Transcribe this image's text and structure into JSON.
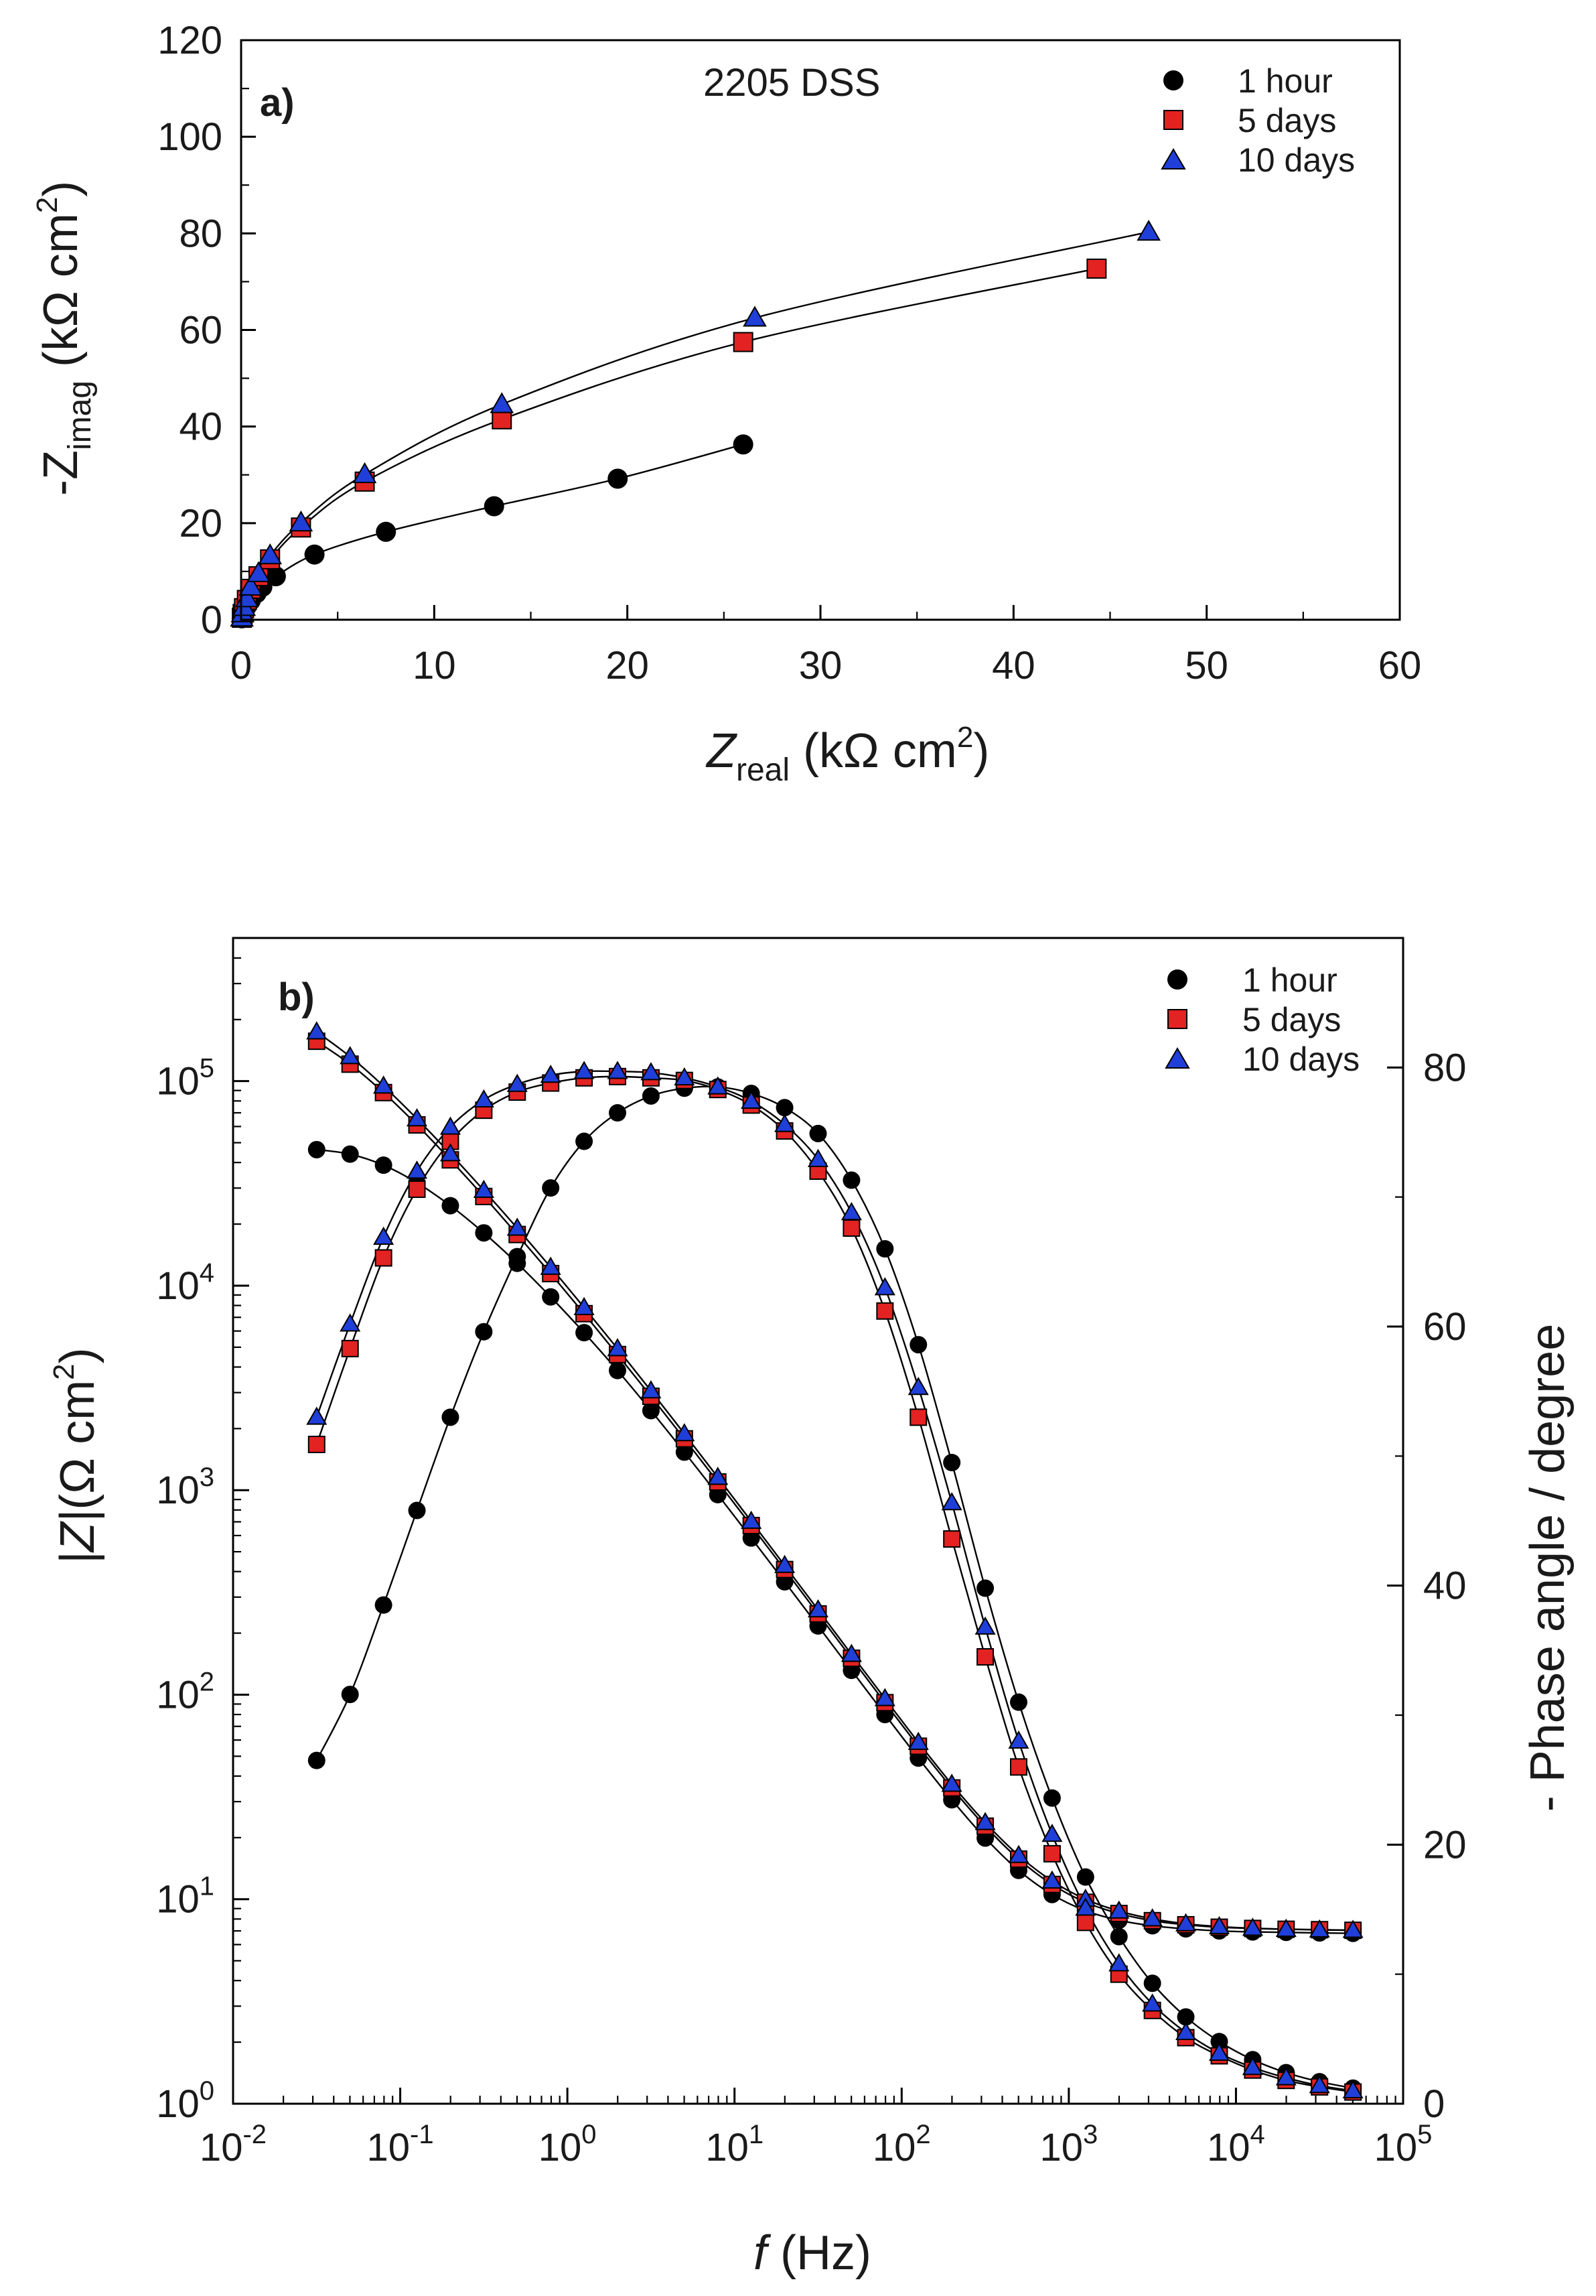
{
  "chart_data": [
    {
      "type": "scatter",
      "panel_label": "a)",
      "title": "2205 DSS",
      "xlabel": {
        "main": "Z",
        "sub": "real",
        "unit": " (kΩ cm",
        "sup": "2",
        "close": ")"
      },
      "ylabel": {
        "main": "-Z",
        "sub": "imag",
        "unit": " (kΩ cm",
        "sup": "2",
        "close": ")"
      },
      "xlim": [
        0,
        60
      ],
      "ylim": [
        0,
        120
      ],
      "xticks": [
        "0",
        "10",
        "20",
        "30",
        "40",
        "50",
        "60"
      ],
      "yticks": [
        "0",
        "20",
        "40",
        "60",
        "80",
        "100",
        "120"
      ],
      "legend_position": "top-right",
      "series": [
        {
          "name": "1 hour",
          "marker": "circle",
          "color": "#000000",
          "x": [
            0.04,
            0.08,
            0.15,
            0.3,
            0.5,
            0.8,
            1.1,
            1.8,
            3.8,
            7.5,
            13.1,
            19.5,
            26.0
          ],
          "y": [
            0.3,
            0.8,
            1.6,
            2.8,
            4.0,
            5.5,
            6.8,
            9.0,
            13.5,
            18.2,
            23.5,
            29.2,
            36.3
          ]
        },
        {
          "name": "5 days",
          "marker": "square",
          "color": "#e32222",
          "x": [
            0.04,
            0.08,
            0.15,
            0.3,
            0.5,
            0.9,
            1.5,
            3.1,
            6.4,
            13.5,
            26.0,
            44.3
          ],
          "y": [
            0.4,
            1.2,
            2.4,
            4.1,
            6.4,
            9.0,
            12.5,
            19.1,
            28.6,
            41.5,
            57.5,
            72.7
          ]
        },
        {
          "name": "10 days",
          "marker": "triangle",
          "color": "#1f3fd8",
          "x": [
            0.04,
            0.08,
            0.15,
            0.3,
            0.5,
            0.9,
            1.5,
            3.1,
            6.4,
            13.5,
            26.6,
            47.0
          ],
          "y": [
            0.4,
            1.3,
            2.6,
            4.4,
            6.8,
            9.6,
            13.3,
            20.1,
            30.1,
            44.6,
            62.5,
            80.3
          ]
        }
      ]
    },
    {
      "type": "scatter",
      "panel_label": "b)",
      "xlabel": {
        "main": "f",
        "unit": " (Hz)"
      },
      "ylabel_left": {
        "main": "|Z|",
        "unit": "(Ω cm",
        "sup": "2",
        "close": ")"
      },
      "ylabel_right": "- Phase angle / degree",
      "x_scale": "log",
      "x_log_range": [
        -2,
        5
      ],
      "y_left_scale": "log",
      "y_left_log_range": [
        0,
        5.7
      ],
      "y_right_range": [
        0,
        90
      ],
      "xtick_exponents": [
        "-2",
        "-1",
        "0",
        "1",
        "2",
        "3",
        "4",
        "5"
      ],
      "ytick_left_exponents": [
        "0",
        "1",
        "2",
        "3",
        "4",
        "5"
      ],
      "yticks_right": [
        "0",
        "20",
        "40",
        "60",
        "80"
      ],
      "tick_base": "10",
      "legend_position": "top-right",
      "frequency_log10": [
        4.7,
        4.5,
        4.3,
        4.1,
        3.9,
        3.7,
        3.5,
        3.3,
        3.1,
        2.9,
        2.7,
        2.5,
        2.3,
        2.1,
        1.9,
        1.7,
        1.5,
        1.3,
        1.1,
        0.9,
        0.7,
        0.5,
        0.3,
        0.1,
        -0.1,
        -0.3,
        -0.5,
        -0.7,
        -0.9,
        -1.1,
        -1.3,
        -1.5
      ],
      "series": [
        {
          "name": "1 hour",
          "marker": "circle",
          "color": "#000000",
          "modulus_log10": [
            0.833,
            0.835,
            0.838,
            0.84,
            0.845,
            0.855,
            0.87,
            0.897,
            0.944,
            1.023,
            1.141,
            1.299,
            1.486,
            1.69,
            1.903,
            2.119,
            2.336,
            2.552,
            2.766,
            2.978,
            3.186,
            3.389,
            3.585,
            3.77,
            3.945,
            4.109,
            4.258,
            4.391,
            4.503,
            4.589,
            4.643,
            4.665
          ],
          "phase_deg": [
            1.2,
            1.7,
            2.4,
            3.4,
            4.8,
            6.7,
            9.3,
            12.9,
            17.5,
            23.6,
            31.0,
            39.8,
            49.5,
            58.6,
            66.0,
            71.3,
            74.9,
            76.9,
            78.0,
            78.5,
            78.4,
            77.8,
            76.5,
            74.3,
            70.7,
            65.4,
            59.6,
            53.0,
            45.8,
            38.5,
            31.6,
            26.5
          ]
        },
        {
          "name": "5 days",
          "marker": "square",
          "color": "#e32222",
          "modulus_log10": [
            0.848,
            0.851,
            0.853,
            0.857,
            0.863,
            0.875,
            0.895,
            0.93,
            0.985,
            1.072,
            1.196,
            1.357,
            1.544,
            1.748,
            1.961,
            2.178,
            2.395,
            2.612,
            2.827,
            3.04,
            3.251,
            3.459,
            3.663,
            3.863,
            4.059,
            4.25,
            4.436,
            4.615,
            4.786,
            4.944,
            5.083,
            5.195
          ],
          "phase_deg": [
            0.9,
            1.3,
            1.8,
            2.6,
            3.7,
            5.1,
            7.2,
            10.0,
            14.0,
            19.3,
            26.0,
            34.5,
            43.6,
            53.0,
            61.2,
            67.6,
            72.0,
            75.1,
            77.1,
            78.3,
            79.0,
            79.2,
            79.3,
            79.2,
            78.8,
            78.1,
            76.7,
            74.3,
            70.6,
            65.3,
            58.3,
            50.9
          ]
        },
        {
          "name": "10 days",
          "marker": "triangle",
          "color": "#1f3fd8",
          "modulus_log10": [
            0.848,
            0.85,
            0.853,
            0.858,
            0.866,
            0.88,
            0.904,
            0.942,
            1.0,
            1.089,
            1.214,
            1.375,
            1.562,
            1.767,
            1.981,
            2.197,
            2.415,
            2.632,
            2.848,
            3.063,
            3.276,
            3.486,
            3.692,
            3.893,
            4.09,
            4.281,
            4.466,
            4.645,
            4.816,
            4.976,
            5.12,
            5.241
          ],
          "phase_deg": [
            1.0,
            1.4,
            2.0,
            2.8,
            3.9,
            5.5,
            7.7,
            10.8,
            15.1,
            20.8,
            28.0,
            36.8,
            46.4,
            55.3,
            63.0,
            68.8,
            72.9,
            75.6,
            77.4,
            78.5,
            79.2,
            79.6,
            79.7,
            79.7,
            79.4,
            78.7,
            77.5,
            75.4,
            72.0,
            66.9,
            60.2,
            53.0
          ]
        }
      ]
    }
  ]
}
